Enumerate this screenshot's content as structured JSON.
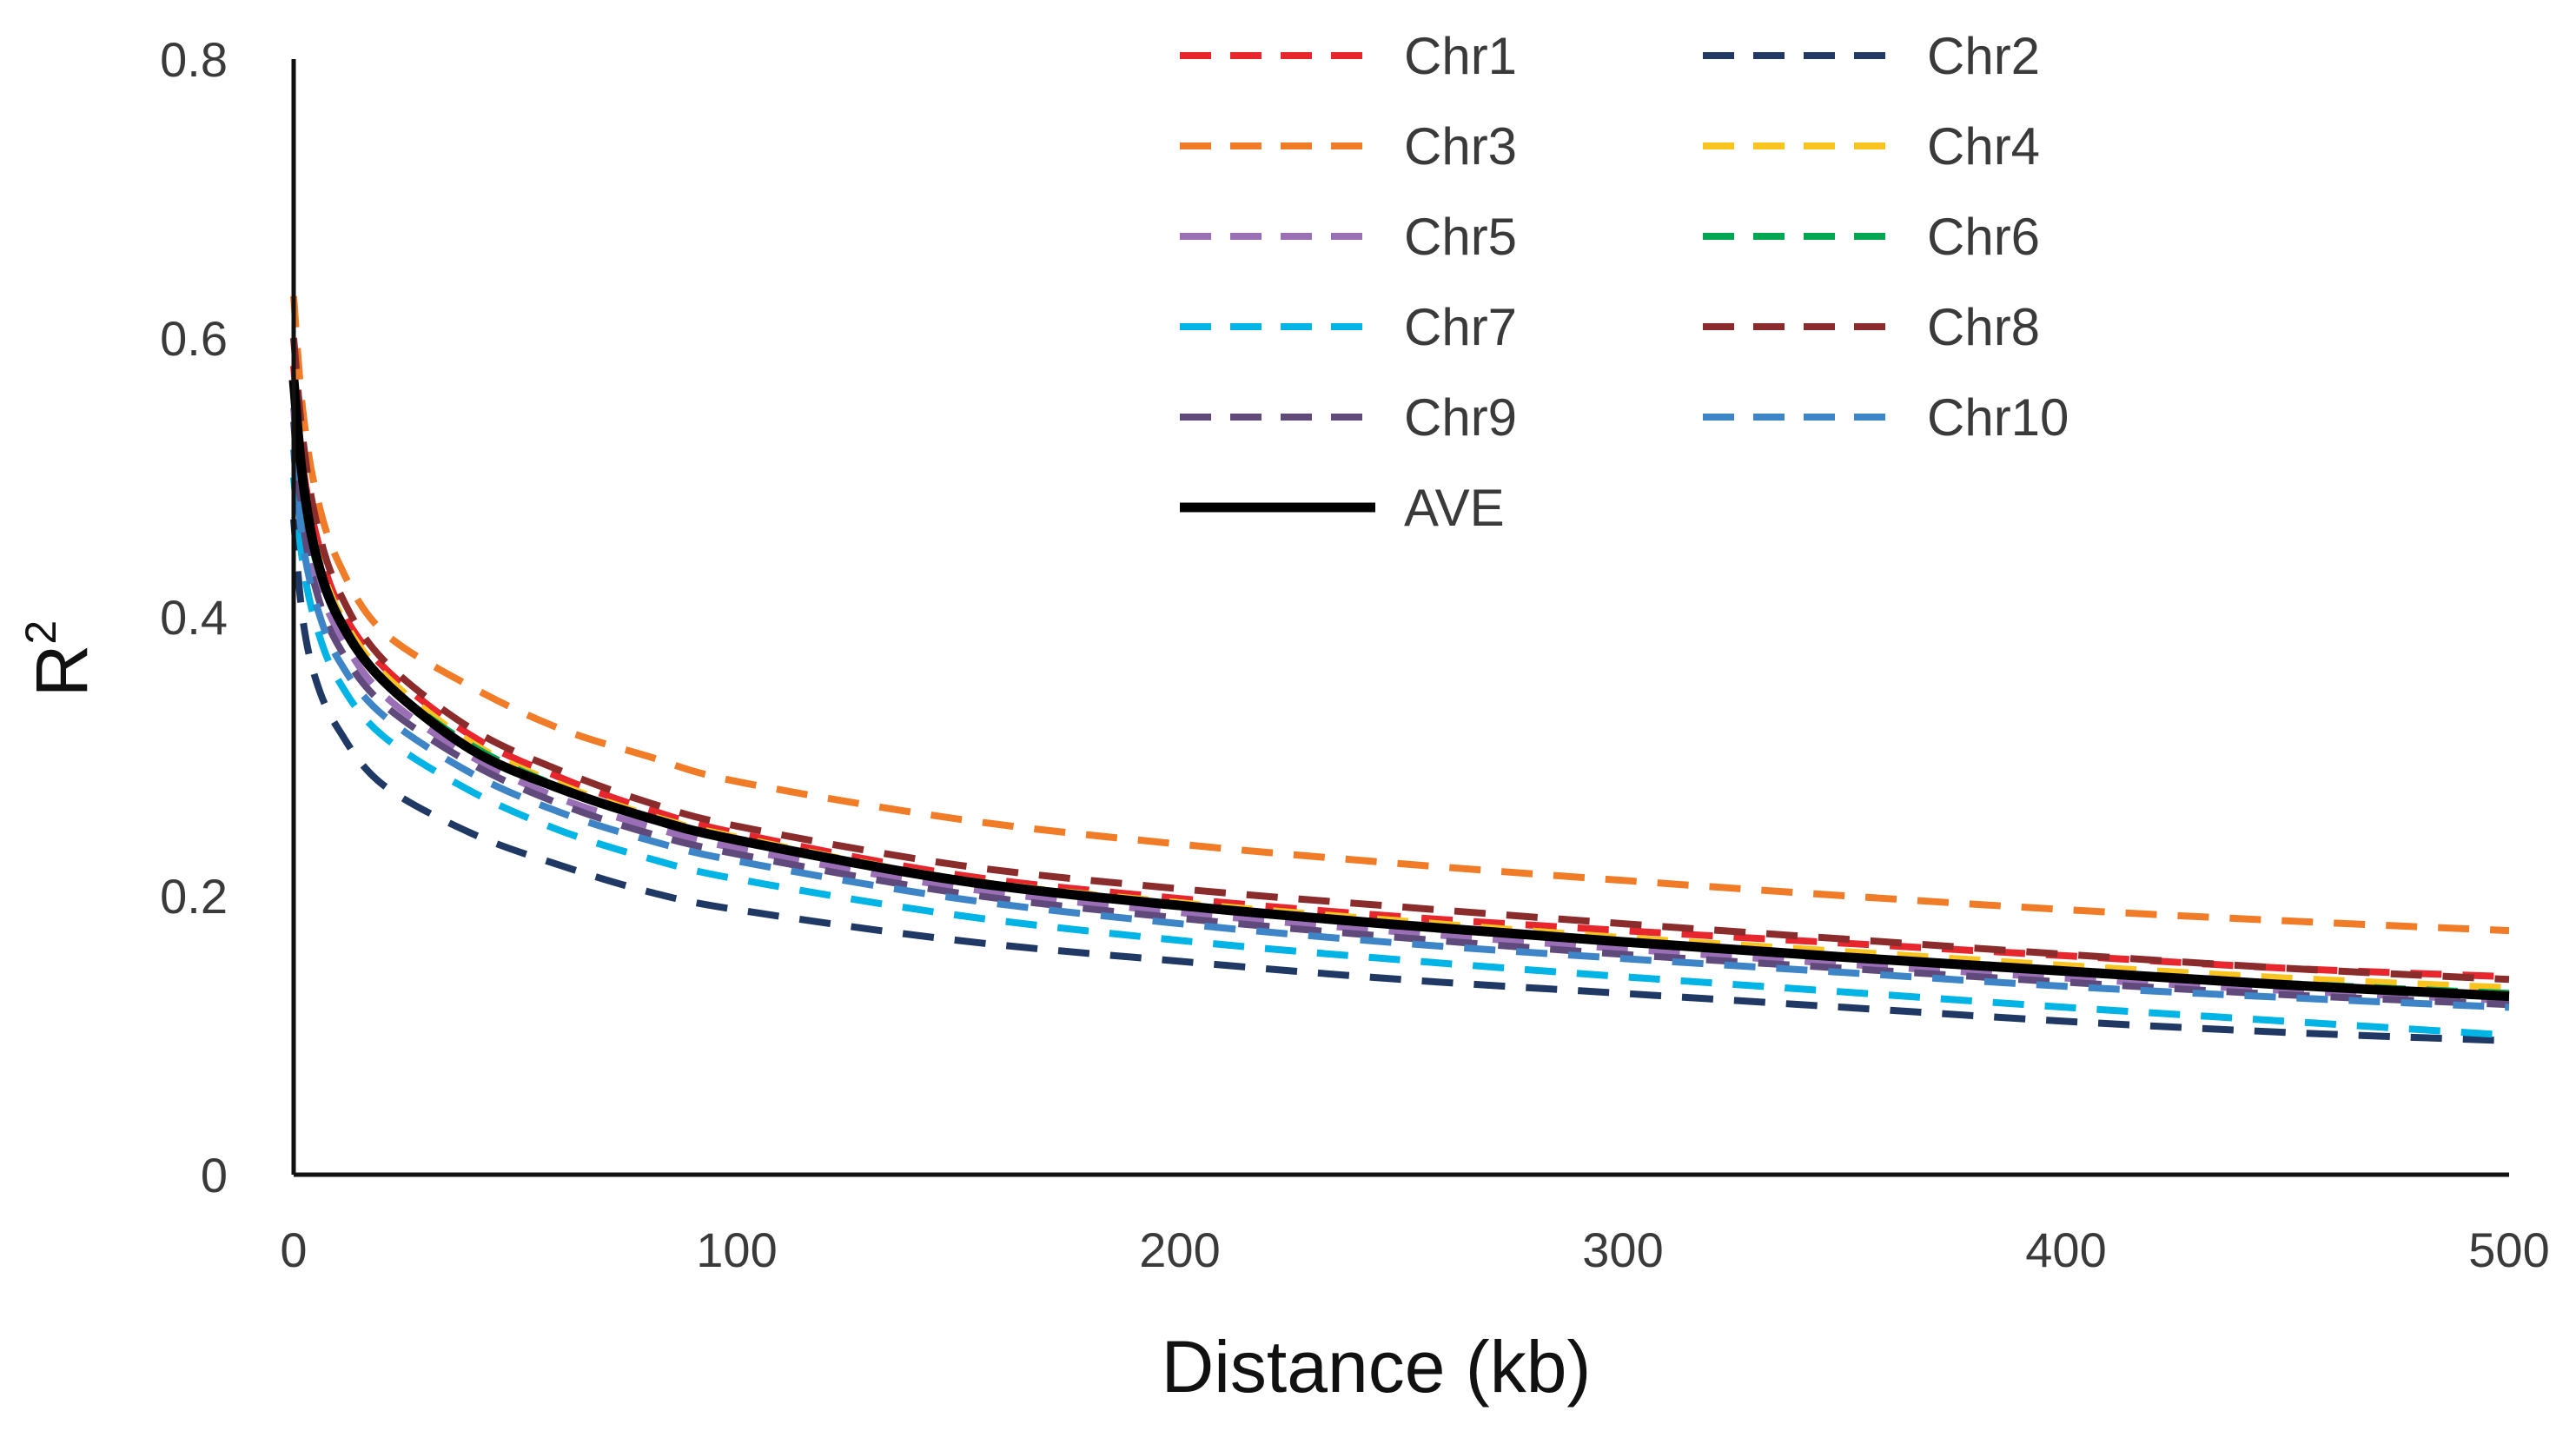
{
  "chart_data": {
    "type": "line",
    "title": "",
    "xlabel": "Distance (kb)",
    "ylabel": "R",
    "ylabel_superscript": "2",
    "xlim": [
      0,
      500
    ],
    "ylim": [
      0,
      0.8
    ],
    "xticks": [
      0,
      100,
      200,
      300,
      400,
      500
    ],
    "xtick_labels": [
      "0",
      "100",
      "200",
      "300",
      "400",
      "500"
    ],
    "yticks": [
      0,
      0.2,
      0.4,
      0.6,
      0.8
    ],
    "ytick_labels": [
      "0",
      "0.2",
      "0.4",
      "0.6",
      "0.8"
    ],
    "grid": false,
    "legend_position": "top-right",
    "x": [
      0,
      2,
      5,
      10,
      20,
      40,
      60,
      80,
      100,
      150,
      200,
      250,
      300,
      350,
      400,
      450,
      500
    ],
    "series": [
      {
        "name": "Chr1",
        "color": "#e8262e",
        "dashed": true,
        "values": [
          0.58,
          0.51,
          0.46,
          0.41,
          0.365,
          0.315,
          0.285,
          0.262,
          0.245,
          0.215,
          0.198,
          0.185,
          0.175,
          0.166,
          0.157,
          0.148,
          0.142
        ]
      },
      {
        "name": "Chr2",
        "color": "#1f3864",
        "dashed": true,
        "values": [
          0.47,
          0.4,
          0.355,
          0.32,
          0.28,
          0.245,
          0.222,
          0.203,
          0.19,
          0.168,
          0.153,
          0.14,
          0.13,
          0.12,
          0.11,
          0.102,
          0.096
        ]
      },
      {
        "name": "Chr3",
        "color": "#f07c28",
        "dashed": true,
        "values": [
          0.63,
          0.55,
          0.49,
          0.44,
          0.39,
          0.35,
          0.32,
          0.3,
          0.282,
          0.255,
          0.237,
          0.223,
          0.211,
          0.2,
          0.19,
          0.182,
          0.175
        ]
      },
      {
        "name": "Chr4",
        "color": "#f9c320",
        "dashed": true,
        "values": [
          0.57,
          0.5,
          0.45,
          0.405,
          0.36,
          0.31,
          0.28,
          0.258,
          0.242,
          0.212,
          0.195,
          0.182,
          0.17,
          0.16,
          0.15,
          0.141,
          0.134
        ]
      },
      {
        "name": "Chr5",
        "color": "#9a6fb5",
        "dashed": true,
        "values": [
          0.55,
          0.48,
          0.43,
          0.39,
          0.345,
          0.3,
          0.27,
          0.25,
          0.234,
          0.206,
          0.188,
          0.174,
          0.162,
          0.151,
          0.141,
          0.132,
          0.125
        ]
      },
      {
        "name": "Chr6",
        "color": "#00a651",
        "dashed": true,
        "values": [
          0.56,
          0.49,
          0.44,
          0.4,
          0.355,
          0.308,
          0.278,
          0.256,
          0.24,
          0.21,
          0.193,
          0.179,
          0.167,
          0.156,
          0.146,
          0.137,
          0.13
        ]
      },
      {
        "name": "Chr7",
        "color": "#00b4e6",
        "dashed": true,
        "values": [
          0.5,
          0.44,
          0.395,
          0.355,
          0.315,
          0.275,
          0.247,
          0.227,
          0.212,
          0.186,
          0.168,
          0.154,
          0.142,
          0.131,
          0.12,
          0.11,
          0.1
        ]
      },
      {
        "name": "Chr8",
        "color": "#8b2c2c",
        "dashed": true,
        "values": [
          0.6,
          0.53,
          0.47,
          0.42,
          0.37,
          0.32,
          0.29,
          0.267,
          0.25,
          0.222,
          0.205,
          0.192,
          0.18,
          0.169,
          0.158,
          0.148,
          0.14
        ]
      },
      {
        "name": "Chr9",
        "color": "#604a7b",
        "dashed": true,
        "values": [
          0.54,
          0.47,
          0.42,
          0.38,
          0.338,
          0.295,
          0.266,
          0.245,
          0.23,
          0.202,
          0.184,
          0.17,
          0.158,
          0.148,
          0.138,
          0.129,
          0.122
        ]
      },
      {
        "name": "Chr10",
        "color": "#3d85c6",
        "dashed": true,
        "values": [
          0.52,
          0.455,
          0.41,
          0.37,
          0.33,
          0.288,
          0.26,
          0.24,
          0.225,
          0.198,
          0.18,
          0.166,
          0.155,
          0.145,
          0.135,
          0.127,
          0.12
        ]
      },
      {
        "name": "AVE",
        "color": "#000000",
        "dashed": false,
        "values": [
          0.57,
          0.5,
          0.445,
          0.4,
          0.355,
          0.305,
          0.277,
          0.256,
          0.24,
          0.211,
          0.193,
          0.179,
          0.167,
          0.156,
          0.146,
          0.136,
          0.128
        ]
      }
    ]
  }
}
